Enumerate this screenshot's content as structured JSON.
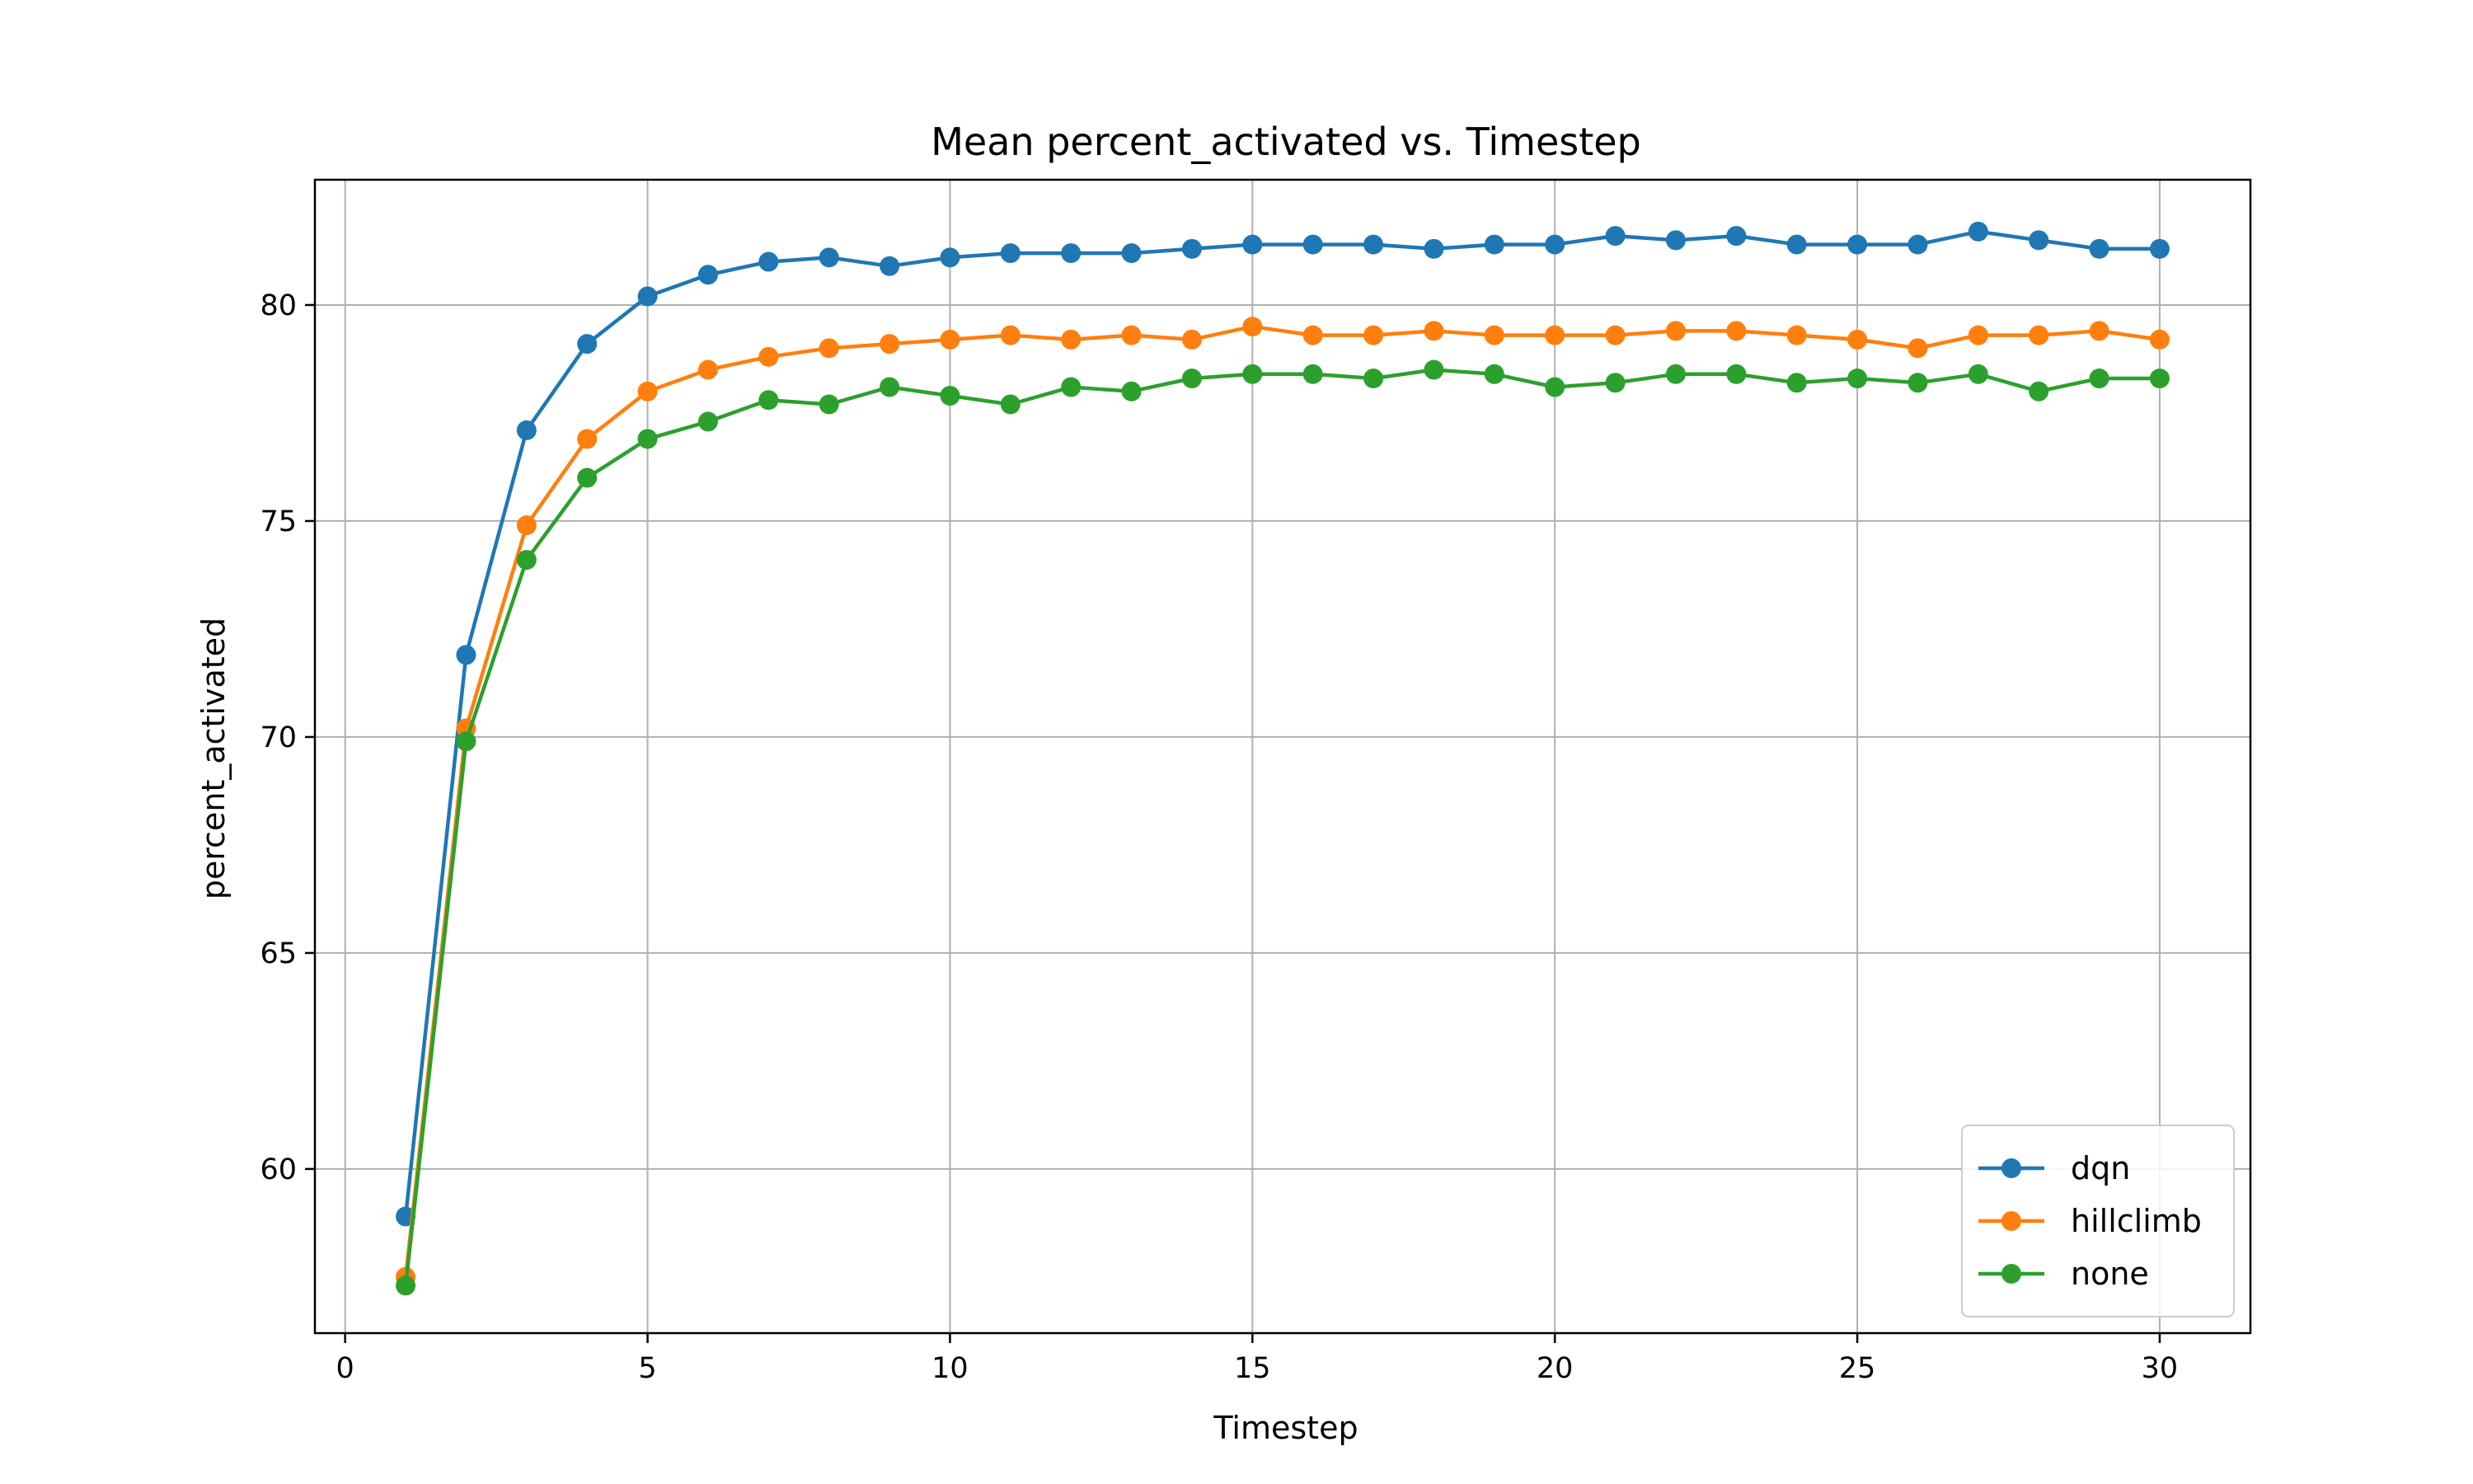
{
  "chart_data": {
    "type": "line",
    "title": "Mean percent_activated vs. Timestep",
    "xlabel": "Timestep",
    "ylabel": "percent_activated",
    "xlim": [
      -0.5,
      31.5
    ],
    "ylim": [
      56.2,
      82.9
    ],
    "xticks": [
      0,
      5,
      10,
      15,
      20,
      25,
      30
    ],
    "yticks": [
      60,
      65,
      70,
      75,
      80
    ],
    "grid": true,
    "legend_position": "lower-right",
    "x": [
      1,
      2,
      3,
      4,
      5,
      6,
      7,
      8,
      9,
      10,
      11,
      12,
      13,
      14,
      15,
      16,
      17,
      18,
      19,
      20,
      21,
      22,
      23,
      24,
      25,
      26,
      27,
      28,
      29,
      30
    ],
    "series": [
      {
        "name": "dqn",
        "color": "#1f77b4",
        "marker": "circle",
        "values": [
          58.9,
          71.9,
          77.1,
          79.1,
          80.2,
          80.7,
          81.0,
          81.1,
          80.9,
          81.1,
          81.2,
          81.2,
          81.2,
          81.3,
          81.4,
          81.4,
          81.4,
          81.3,
          81.4,
          81.4,
          81.6,
          81.5,
          81.6,
          81.4,
          81.4,
          81.4,
          81.7,
          81.5,
          81.3,
          81.3
        ]
      },
      {
        "name": "hillclimb",
        "color": "#ff7f0e",
        "marker": "circle",
        "values": [
          57.5,
          70.2,
          74.9,
          76.9,
          78.0,
          78.5,
          78.8,
          79.0,
          79.1,
          79.2,
          79.3,
          79.2,
          79.3,
          79.2,
          79.5,
          79.3,
          79.3,
          79.4,
          79.3,
          79.3,
          79.3,
          79.4,
          79.4,
          79.3,
          79.2,
          79.0,
          79.3,
          79.3,
          79.4,
          79.2
        ]
      },
      {
        "name": "none",
        "color": "#2ca02c",
        "marker": "circle",
        "values": [
          57.3,
          69.9,
          74.1,
          76.0,
          76.9,
          77.3,
          77.8,
          77.7,
          78.1,
          77.9,
          77.7,
          78.1,
          78.0,
          78.3,
          78.4,
          78.4,
          78.3,
          78.5,
          78.4,
          78.1,
          78.2,
          78.4,
          78.4,
          78.2,
          78.3,
          78.2,
          78.4,
          78.0,
          78.3,
          78.3
        ]
      }
    ]
  }
}
